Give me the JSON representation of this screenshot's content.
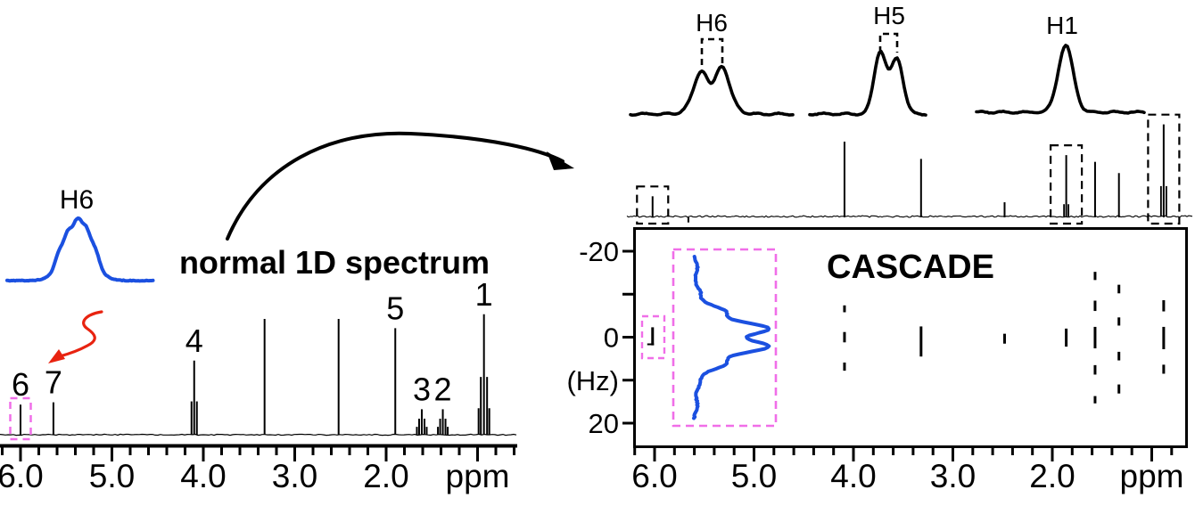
{
  "figure_caption_left": "normal 1D spectrum",
  "colors": {
    "black": "#000000",
    "blue": "#1b50e0",
    "pink": "#f06ee8",
    "red": "#e82310",
    "background": "#ffffff"
  },
  "chart_data": [
    {
      "id": "left_1d_nmr",
      "type": "line",
      "title": "normal 1D spectrum",
      "xlabel": "ppm",
      "x_range": [
        6.25,
        0.55
      ],
      "x_ticks": [
        {
          "ppm": 6.0,
          "label": "6.0"
        },
        {
          "ppm": 5.0,
          "label": "5.0"
        },
        {
          "ppm": 4.0,
          "label": "4.0"
        },
        {
          "ppm": 3.0,
          "label": "3.0"
        },
        {
          "ppm": 2.0,
          "label": "2.0"
        },
        {
          "ppm": 1.0,
          "label": "ppm"
        }
      ],
      "inset": {
        "label": "H6",
        "description": "expanded H6 multiplet",
        "color": "blue"
      },
      "peaks": [
        {
          "label": "6",
          "ppm": 6.0,
          "height": 0.26,
          "shape": "singlet",
          "highlight_box": true
        },
        {
          "label": "7",
          "ppm": 5.64,
          "height": 0.28,
          "shape": "singlet"
        },
        {
          "label": "4",
          "ppm": 4.1,
          "height": 0.64,
          "shape": "multiplet"
        },
        {
          "label": "",
          "ppm": 3.33,
          "height": 1.0,
          "shape": "singlet"
        },
        {
          "label": "",
          "ppm": 2.52,
          "height": 1.0,
          "shape": "singlet"
        },
        {
          "label": "5",
          "ppm": 1.9,
          "height": 0.92,
          "shape": "singlet"
        },
        {
          "label": "3",
          "ppm": 1.61,
          "height": 0.22,
          "shape": "multiplet"
        },
        {
          "label": "2",
          "ppm": 1.38,
          "height": 0.22,
          "shape": "multiplet"
        },
        {
          "label": "1",
          "ppm": 0.93,
          "height": 1.04,
          "shape": "multiplet"
        }
      ]
    },
    {
      "id": "multiplet_expansions",
      "type": "line",
      "multiplets": [
        {
          "label": "H6",
          "shape": "doublet",
          "bracket": true
        },
        {
          "label": "H5",
          "shape": "doublet",
          "bracket": true
        },
        {
          "label": "H1",
          "shape": "singlet",
          "bracket": false
        }
      ]
    },
    {
      "id": "right_1d_nmr",
      "type": "line",
      "peaks": [
        {
          "ppm": 6.02,
          "height": 0.27,
          "highlight_box": true
        },
        {
          "ppm": 5.66,
          "height": -0.08
        },
        {
          "ppm": 4.09,
          "height": 1.0
        },
        {
          "ppm": 3.32,
          "height": 0.77
        },
        {
          "ppm": 2.48,
          "height": 0.19
        },
        {
          "ppm": 1.86,
          "height": 0.82,
          "highlight_box": true
        },
        {
          "ppm": 1.57,
          "height": 0.73
        },
        {
          "ppm": 1.33,
          "height": 0.58
        },
        {
          "ppm": 0.88,
          "height": 1.23,
          "highlight_box": true
        }
      ]
    },
    {
      "id": "cascade_2d",
      "type": "scatter",
      "title": "CASCADE",
      "xlabel": "ppm",
      "ylabel": "(Hz)",
      "ylim": [
        -25,
        25
      ],
      "y_ticks": [
        -20,
        -10,
        0,
        10,
        20
      ],
      "y_axis_labels": [
        {
          "hz": -20,
          "text": "-20"
        },
        {
          "hz": 0,
          "text": "0"
        },
        {
          "hz": 10,
          "text": "(Hz)"
        },
        {
          "hz": 20,
          "text": "20"
        }
      ],
      "x_ticks": [
        {
          "ppm": 6.0,
          "label": "6.0"
        },
        {
          "ppm": 5.0,
          "label": "5.0"
        },
        {
          "ppm": 4.0,
          "label": "4.0"
        },
        {
          "ppm": 3.0,
          "label": "3.0"
        },
        {
          "ppm": 2.0,
          "label": "2.0"
        },
        {
          "ppm": 1.0,
          "label": "ppm"
        }
      ],
      "columns": [
        {
          "ppm": 6.02,
          "marks_hz": [
            [
              -2.3,
              1.9
            ]
          ],
          "pink_box": true
        },
        {
          "ppm": 4.09,
          "marks_hz": [
            [
              -7.4,
              -5.8
            ],
            [
              -1.2,
              1.2
            ],
            [
              5.9,
              7.8
            ]
          ]
        },
        {
          "ppm": 3.32,
          "marks_hz": [
            [
              -2.5,
              4.5
            ]
          ]
        },
        {
          "ppm": 2.48,
          "marks_hz": [
            [
              -0.8,
              1.5
            ]
          ]
        },
        {
          "ppm": 1.86,
          "marks_hz": [
            [
              -2.0,
              2.2
            ]
          ]
        },
        {
          "ppm": 1.57,
          "marks_hz": [
            [
              -15.2,
              -13.3
            ],
            [
              -8.5,
              -6.1
            ],
            [
              -2.4,
              2.6
            ],
            [
              6.5,
              8.7
            ],
            [
              13.7,
              15.4
            ]
          ]
        },
        {
          "ppm": 1.33,
          "marks_hz": [
            [
              -12.2,
              -10.2
            ],
            [
              -4.6,
              -2.7
            ],
            [
              3.4,
              5.4
            ],
            [
              11.0,
              13.1
            ]
          ]
        },
        {
          "ppm": 0.88,
          "marks_hz": [
            [
              -8.6,
              -6.0
            ],
            [
              -2.4,
              2.8
            ],
            [
              6.4,
              8.5
            ]
          ]
        }
      ],
      "inset": {
        "description": "H6 multiplet shown vertically",
        "color": "blue",
        "pink_box": true
      }
    }
  ]
}
